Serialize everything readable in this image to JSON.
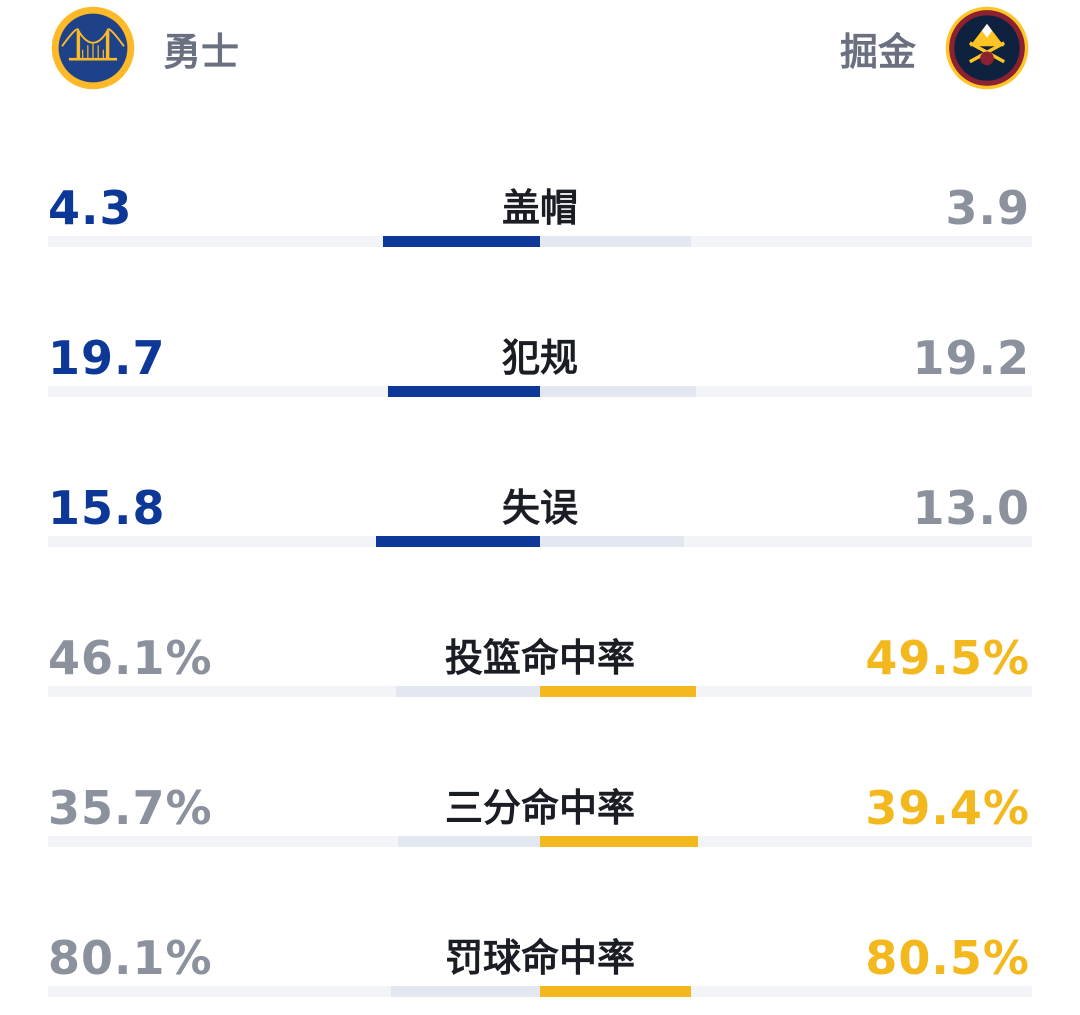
{
  "colors": {
    "home": "#0d3897",
    "away": "#f4b81f",
    "muted": "#8c919e",
    "track": "#f3f4f7",
    "track_shade": "#e2e7f0"
  },
  "teams": {
    "home": {
      "name": "勇士",
      "logo_icon": "golden-state-warriors-logo"
    },
    "away": {
      "name": "掘金",
      "logo_icon": "denver-nuggets-logo"
    }
  },
  "stats": [
    {
      "label": "盖帽",
      "home": "4.3",
      "away": "3.9",
      "home_num": 4.3,
      "away_num": 3.9,
      "leader": "home"
    },
    {
      "label": "犯规",
      "home": "19.7",
      "away": "19.2",
      "home_num": 19.7,
      "away_num": 19.2,
      "leader": "home"
    },
    {
      "label": "失误",
      "home": "15.8",
      "away": "13.0",
      "home_num": 15.8,
      "away_num": 13.0,
      "leader": "home"
    },
    {
      "label": "投篮命中率",
      "home": "46.1%",
      "away": "49.5%",
      "home_num": 46.1,
      "away_num": 49.5,
      "leader": "away"
    },
    {
      "label": "三分命中率",
      "home": "35.7%",
      "away": "39.4%",
      "home_num": 35.7,
      "away_num": 39.4,
      "leader": "away"
    },
    {
      "label": "罚球命中率",
      "home": "80.1%",
      "away": "80.5%",
      "home_num": 80.1,
      "away_num": 80.5,
      "leader": "away"
    }
  ]
}
